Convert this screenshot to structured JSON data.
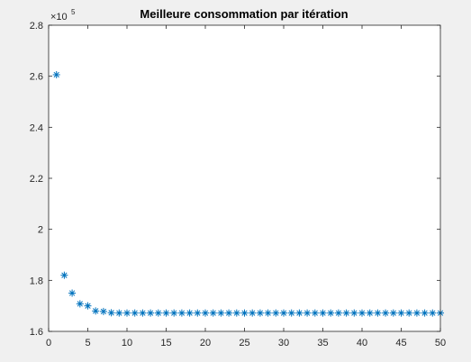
{
  "chart_data": {
    "type": "scatter",
    "title": "Meilleure consommation par itération",
    "xlabel": "",
    "ylabel": "",
    "xlim": [
      0,
      50
    ],
    "ylim": [
      160000,
      280000
    ],
    "xticks": [
      0,
      5,
      10,
      15,
      20,
      25,
      30,
      35,
      40,
      45,
      50
    ],
    "yticks": [
      1.6,
      1.8,
      2,
      2.2,
      2.4,
      2.6,
      2.8
    ],
    "y_exponent_base": "×10",
    "y_exponent": "5",
    "marker": "asterisk",
    "grid": false,
    "color": "#0072bd",
    "x": [
      1,
      2,
      3,
      4,
      5,
      6,
      7,
      8,
      9,
      10,
      11,
      12,
      13,
      14,
      15,
      16,
      17,
      18,
      19,
      20,
      21,
      22,
      23,
      24,
      25,
      26,
      27,
      28,
      29,
      30,
      31,
      32,
      33,
      34,
      35,
      36,
      37,
      38,
      39,
      40,
      41,
      42,
      43,
      44,
      45,
      46,
      47,
      48,
      49,
      50
    ],
    "y": [
      260600,
      182000,
      175000,
      170800,
      170000,
      168000,
      167800,
      167300,
      167200,
      167200,
      167200,
      167200,
      167200,
      167200,
      167200,
      167200,
      167200,
      167200,
      167200,
      167200,
      167200,
      167200,
      167200,
      167200,
      167200,
      167200,
      167200,
      167200,
      167200,
      167200,
      167200,
      167200,
      167200,
      167200,
      167200,
      167200,
      167200,
      167200,
      167200,
      167200,
      167200,
      167200,
      167200,
      167200,
      167200,
      167200,
      167200,
      167200,
      167200,
      167200
    ]
  }
}
